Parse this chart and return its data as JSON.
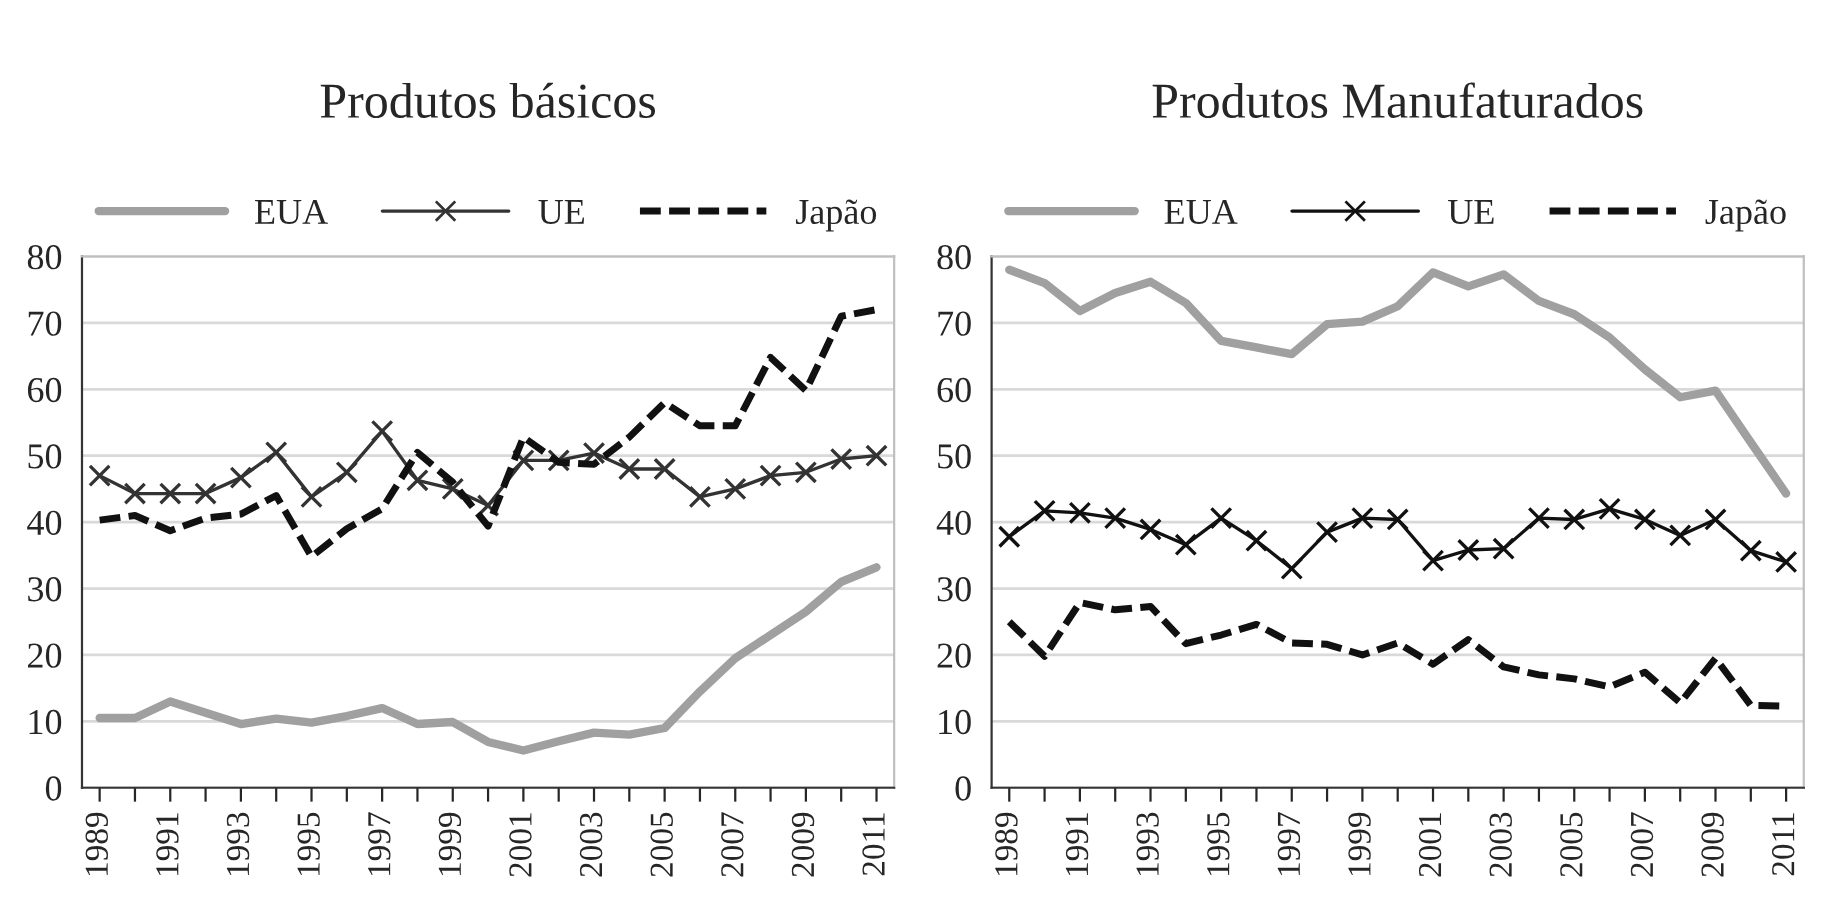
{
  "chart_data": [
    {
      "type": "line",
      "title": "Produtos básicos",
      "categories": [
        "1989",
        null,
        "1991",
        null,
        "1993",
        null,
        "1995",
        null,
        "1997",
        null,
        "1999",
        null,
        "2001",
        null,
        "2003",
        null,
        "2005",
        null,
        "2007",
        null,
        "2009",
        null,
        "2011"
      ],
      "ylim": [
        0,
        80
      ],
      "yticks": [
        0,
        10,
        20,
        30,
        40,
        50,
        60,
        70,
        80
      ],
      "grid": "y",
      "legend": "top",
      "series": [
        {
          "name": "EUA",
          "color": "#a0a0a0",
          "marker": "none",
          "line_style": "solid",
          "values": [
            10.5,
            10.5,
            13,
            11.3,
            9.6,
            10.4,
            9.8,
            10.8,
            12,
            9.6,
            9.9,
            6.9,
            5.6,
            7,
            8.3,
            8,
            9,
            14.5,
            19.5,
            23,
            26.5,
            31,
            33.2
          ]
        },
        {
          "name": "UE",
          "color": "#333333",
          "marker": "cross",
          "line_style": "solid",
          "values": [
            47,
            44.3,
            44.3,
            44.3,
            46.7,
            50.5,
            43.8,
            47.5,
            53.7,
            46.3,
            45,
            42.5,
            49.3,
            49.3,
            50.4,
            48,
            48,
            43.8,
            45,
            47,
            47.5,
            49.5,
            50
          ]
        },
        {
          "name": "Japão",
          "color": "#111111",
          "marker": "none",
          "line_style": "dashed",
          "values": [
            40.3,
            41,
            38.7,
            40.6,
            41.2,
            44,
            34.8,
            39,
            42,
            50.5,
            46,
            39.4,
            52.8,
            49,
            48.7,
            52.8,
            58,
            54.5,
            54.5,
            64.8,
            59.8,
            71,
            72
          ]
        }
      ]
    },
    {
      "type": "line",
      "title": "Produtos Manufaturados",
      "categories": [
        "1989",
        null,
        "1991",
        null,
        "1993",
        null,
        "1995",
        null,
        "1997",
        null,
        "1999",
        null,
        "2001",
        null,
        "2003",
        null,
        "2005",
        null,
        "2007",
        null,
        "2009",
        null,
        "2011"
      ],
      "ylim": [
        0,
        80
      ],
      "yticks": [
        0,
        10,
        20,
        30,
        40,
        50,
        60,
        70,
        80
      ],
      "grid": "y",
      "legend": "top",
      "series": [
        {
          "name": "EUA",
          "color": "#a0a0a0",
          "marker": "none",
          "line_style": "solid",
          "values": [
            78,
            76,
            71.8,
            74.5,
            76.2,
            73,
            67.3,
            66.3,
            65.3,
            69.8,
            70.2,
            72.5,
            77.6,
            75.5,
            77.3,
            73.3,
            71.3,
            67.8,
            63,
            58.8,
            59.8,
            52,
            44.3
          ]
        },
        {
          "name": "UE",
          "color": "#111111",
          "marker": "cross",
          "line_style": "solid",
          "values": [
            37.8,
            41.7,
            41.4,
            40.6,
            38.9,
            36.6,
            40.6,
            37.2,
            33,
            38.5,
            40.6,
            40.4,
            34.2,
            35.8,
            36,
            40.6,
            40.4,
            42,
            40.4,
            38,
            40.4,
            35.7,
            34
          ]
        },
        {
          "name": "Japão",
          "color": "#111111",
          "marker": "none",
          "line_style": "dashed",
          "values": [
            25,
            19.8,
            27.9,
            26.8,
            27.3,
            21.7,
            23,
            24.6,
            21.8,
            21.6,
            20,
            21.8,
            18.6,
            22.3,
            18.2,
            17,
            16.4,
            15.2,
            17.4,
            12.8,
            19.5,
            12.4,
            12.3
          ]
        }
      ]
    }
  ]
}
